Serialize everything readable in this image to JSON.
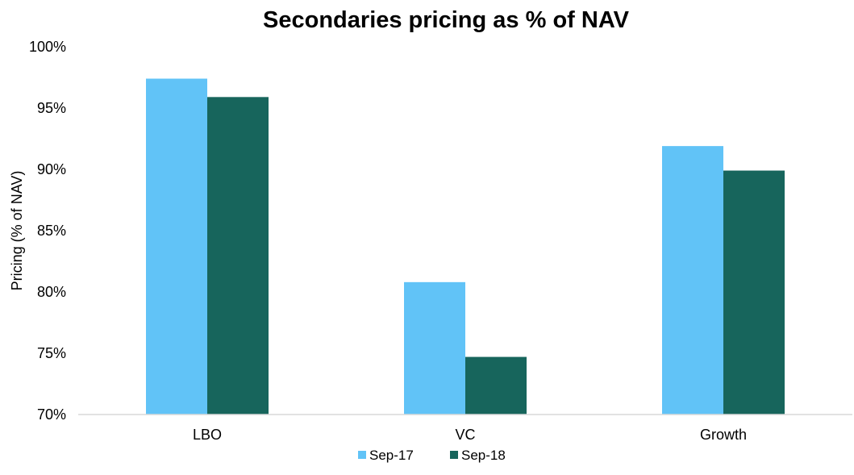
{
  "chart_data": {
    "type": "bar",
    "title": "Secondaries pricing as % of NAV",
    "xlabel": "",
    "ylabel": "Pricing (% of NAV)",
    "categories": [
      "LBO",
      "VC",
      "Growth"
    ],
    "series": [
      {
        "name": "Sep-17",
        "values": [
          97.4,
          80.8,
          91.9
        ],
        "color": "#61C3F7"
      },
      {
        "name": "Sep-18",
        "values": [
          95.9,
          74.7,
          89.9
        ],
        "color": "#17655C"
      }
    ],
    "ylim": [
      70,
      100
    ],
    "yticks": [
      70,
      75,
      80,
      85,
      90,
      95,
      100
    ],
    "ytick_labels": [
      "70%",
      "75%",
      "80%",
      "85%",
      "90%",
      "95%",
      "100%"
    ],
    "grid": false,
    "legend_position": "bottom"
  }
}
